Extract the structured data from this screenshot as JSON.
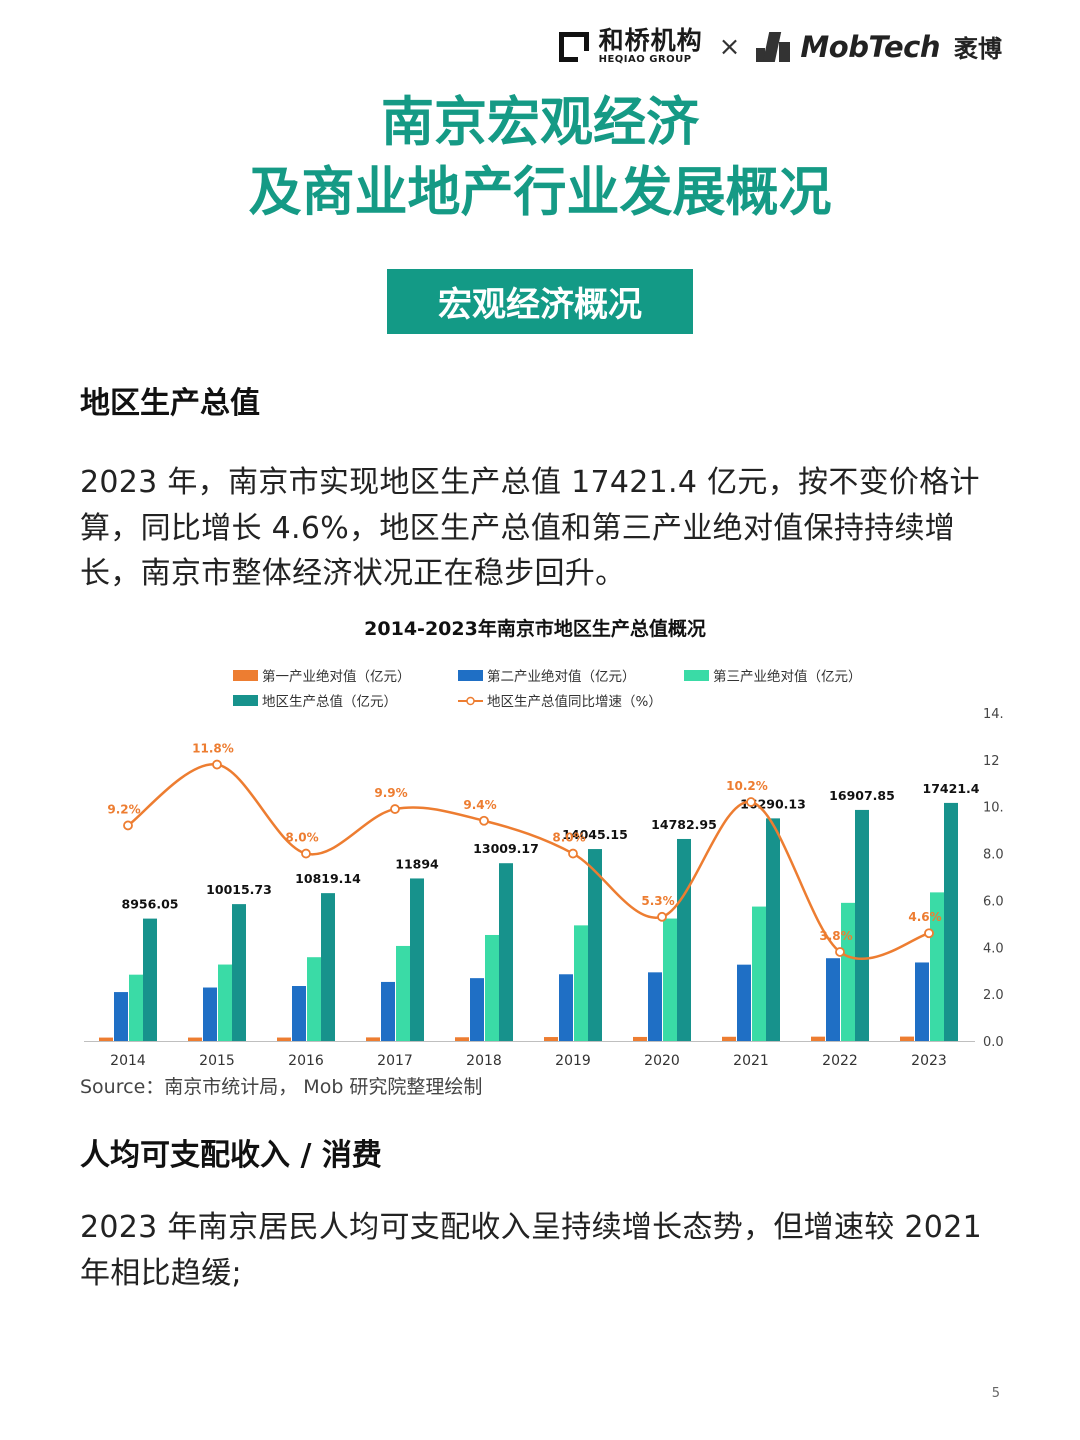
{
  "header": {
    "brand1_cn": "和桥机构",
    "brand1_en": "HEQIAO GROUP",
    "separator": "×",
    "brand2": "MobTech",
    "brand2_cn": "袤博"
  },
  "title": {
    "line1": "南京宏观经济",
    "line2": "及商业地产行业发展概况"
  },
  "section_badge": "宏观经济概况",
  "section1": {
    "heading": "地区生产总值",
    "body": "2023 年，南京市实现地区生产总值 17421.4 亿元，按不变价格计算，同比增长 4.6%，地区生产总值和第三产业绝对值保持持续增长，南京市整体经济状况正在稳步回升。"
  },
  "source": "Source：南京市统计局， Mob 研究院整理绘制",
  "section2": {
    "heading": "人均可支配收入 / 消费",
    "body": "2023 年南京居民人均可支配收入呈持续增长态势，但增速较 2021 年相比趋缓;"
  },
  "page_number": "5",
  "colors": {
    "accent": "#159a85",
    "primary": "#ED7D31",
    "secondary": "#1F6FC5",
    "tertiary": "#3ADBA6",
    "gdp": "#17928C",
    "growth": "#ED7D31"
  },
  "chart_data": {
    "type": "bar",
    "title": "2014-2023年南京市地区生产总值概况",
    "categories": [
      "2014",
      "2015",
      "2016",
      "2017",
      "2018",
      "2019",
      "2020",
      "2021",
      "2022",
      "2023"
    ],
    "series": [
      {
        "name": "第一产业绝对值（亿元）",
        "type": "bar",
        "values": [
          250,
          252,
          253,
          263,
          274,
          290,
          297,
          309,
          318,
          323
        ]
      },
      {
        "name": "第二产业绝对值（亿元）",
        "type": "bar",
        "values": [
          3580,
          3913,
          4024,
          4322,
          4599,
          4882,
          5024,
          5586,
          6057,
          5746
        ]
      },
      {
        "name": "第三产业绝对值（亿元）",
        "type": "bar",
        "values": [
          4853,
          5594,
          6131,
          6955,
          7758,
          8461,
          8960,
          9836,
          10109,
          10875
        ]
      },
      {
        "name": "地区生产总值（亿元）",
        "type": "bar",
        "values": [
          8956.05,
          10015.73,
          10819.14,
          11894,
          13009.17,
          14045.15,
          14782.95,
          16290.13,
          16907.85,
          17421.4
        ]
      },
      {
        "name": "地区生产总值同比增速（%）",
        "type": "line",
        "axis": "right",
        "values": [
          9.2,
          11.8,
          8.0,
          9.9,
          9.4,
          8.0,
          5.3,
          10.2,
          3.8,
          4.6
        ]
      }
    ],
    "gdp_labels": [
      "8956.05",
      "10015.73",
      "10819.14",
      "11894",
      "13009.17",
      "14045.15",
      "14782.95",
      "16290.13",
      "16907.85",
      "17421.4"
    ],
    "growth_labels": [
      "9.2%",
      "11.8%",
      "8.0%",
      "9.9%",
      "9.4%",
      "8.0%",
      "5.3%",
      "10.2%",
      "3.8%",
      "4.6%"
    ],
    "y_left_range": [
      0,
      24000
    ],
    "y_right_range": [
      0,
      14
    ],
    "y_right_ticks": [
      "0.0",
      "2.0",
      "4.0",
      "6.0",
      "8.0",
      "10.",
      "12",
      "14."
    ],
    "legend_position": "top",
    "grid": false
  }
}
